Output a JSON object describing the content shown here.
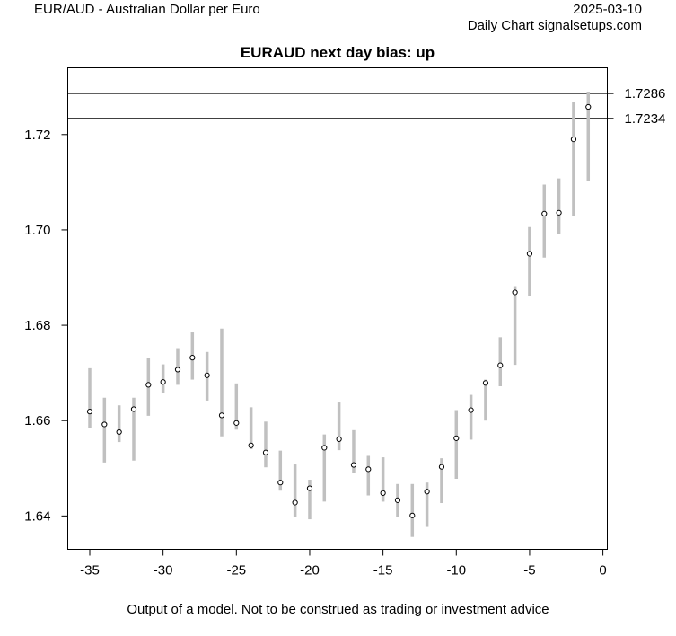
{
  "header": {
    "instrument": "EUR/AUD - Australian Dollar per Euro",
    "date": "2025-03-10",
    "source": "Daily Chart signalsetups.com"
  },
  "footer": {
    "disclaimer": "Output of a model. Not to be construed as trading or investment advice"
  },
  "chart_data": {
    "type": "scatter",
    "title": "EURAUD next day bias: up",
    "xlabel": "",
    "ylabel": "",
    "xlim": [
      -36.5,
      0.3
    ],
    "ylim": [
      1.633,
      1.734
    ],
    "x_ticks": [
      -35,
      -30,
      -25,
      -20,
      -15,
      -10,
      -5,
      0
    ],
    "y_ticks": [
      1.64,
      1.66,
      1.68,
      1.7,
      1.72
    ],
    "grid": false,
    "colors": {
      "range_bar": "#c0c0c0",
      "point_fill": "#ffffff",
      "point_stroke": "#000000",
      "level_line": "#000000"
    },
    "reference_lines": [
      {
        "value": 1.7286,
        "label": "1.7286"
      },
      {
        "value": 1.7234,
        "label": "1.7234"
      }
    ],
    "points": [
      {
        "x": -35,
        "close": 1.6619,
        "low": 1.6585,
        "high": 1.671
      },
      {
        "x": -34,
        "close": 1.6592,
        "low": 1.6512,
        "high": 1.6648
      },
      {
        "x": -33,
        "close": 1.6576,
        "low": 1.6555,
        "high": 1.6632
      },
      {
        "x": -32,
        "close": 1.6624,
        "low": 1.6516,
        "high": 1.6648
      },
      {
        "x": -31,
        "close": 1.6675,
        "low": 1.661,
        "high": 1.6732
      },
      {
        "x": -30,
        "close": 1.6681,
        "low": 1.6657,
        "high": 1.6718
      },
      {
        "x": -29,
        "close": 1.6707,
        "low": 1.6675,
        "high": 1.6752
      },
      {
        "x": -28,
        "close": 1.6732,
        "low": 1.6686,
        "high": 1.6785
      },
      {
        "x": -27,
        "close": 1.6695,
        "low": 1.6642,
        "high": 1.6744
      },
      {
        "x": -26,
        "close": 1.6611,
        "low": 1.6567,
        "high": 1.6793
      },
      {
        "x": -25,
        "close": 1.6595,
        "low": 1.6581,
        "high": 1.6678
      },
      {
        "x": -24,
        "close": 1.6548,
        "low": 1.654,
        "high": 1.6628
      },
      {
        "x": -23,
        "close": 1.6533,
        "low": 1.6502,
        "high": 1.6598
      },
      {
        "x": -22,
        "close": 1.647,
        "low": 1.6453,
        "high": 1.6537
      },
      {
        "x": -21,
        "close": 1.6428,
        "low": 1.6397,
        "high": 1.6508
      },
      {
        "x": -20,
        "close": 1.6458,
        "low": 1.6393,
        "high": 1.6476
      },
      {
        "x": -19,
        "close": 1.6543,
        "low": 1.643,
        "high": 1.6571
      },
      {
        "x": -18,
        "close": 1.6561,
        "low": 1.6538,
        "high": 1.6638
      },
      {
        "x": -17,
        "close": 1.6507,
        "low": 1.649,
        "high": 1.658
      },
      {
        "x": -16,
        "close": 1.6498,
        "low": 1.6443,
        "high": 1.6526
      },
      {
        "x": -15,
        "close": 1.6448,
        "low": 1.643,
        "high": 1.6523
      },
      {
        "x": -14,
        "close": 1.6433,
        "low": 1.6398,
        "high": 1.6467
      },
      {
        "x": -13,
        "close": 1.6401,
        "low": 1.6356,
        "high": 1.6467
      },
      {
        "x": -12,
        "close": 1.6451,
        "low": 1.6377,
        "high": 1.647
      },
      {
        "x": -11,
        "close": 1.6503,
        "low": 1.6427,
        "high": 1.6521
      },
      {
        "x": -10,
        "close": 1.6563,
        "low": 1.6478,
        "high": 1.6622
      },
      {
        "x": -9,
        "close": 1.6622,
        "low": 1.656,
        "high": 1.6654
      },
      {
        "x": -8,
        "close": 1.6679,
        "low": 1.66,
        "high": 1.6686
      },
      {
        "x": -7,
        "close": 1.6716,
        "low": 1.6672,
        "high": 1.6775
      },
      {
        "x": -6,
        "close": 1.6869,
        "low": 1.6717,
        "high": 1.6882
      },
      {
        "x": -5,
        "close": 1.695,
        "low": 1.6861,
        "high": 1.7006
      },
      {
        "x": -4,
        "close": 1.7034,
        "low": 1.6942,
        "high": 1.7095
      },
      {
        "x": -3,
        "close": 1.7036,
        "low": 1.6991,
        "high": 1.7108
      },
      {
        "x": -2,
        "close": 1.719,
        "low": 1.7029,
        "high": 1.7268
      },
      {
        "x": -1,
        "close": 1.7258,
        "low": 1.7103,
        "high": 1.729
      }
    ]
  }
}
